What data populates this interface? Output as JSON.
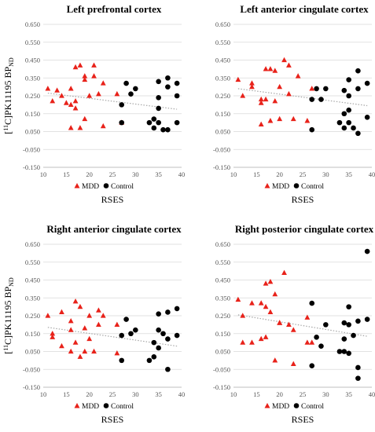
{
  "chart_data": [
    {
      "type": "scatter",
      "title": "Left prefrontal cortex",
      "xlabel": "RSES",
      "ylabel": "[11C]PK11195 BPND",
      "xlim": [
        10,
        40
      ],
      "ylim": [
        -0.15,
        0.65
      ],
      "xticks": [
        10,
        15,
        20,
        25,
        30,
        35,
        40
      ],
      "yticks": [
        -0.15,
        -0.05,
        0.05,
        0.15,
        0.25,
        0.35,
        0.45,
        0.55,
        0.65
      ],
      "series": [
        {
          "name": "MDD",
          "marker": "triangle",
          "color": "#e8221a",
          "x": [
            11,
            12,
            13,
            14,
            15,
            16,
            16,
            16,
            17,
            17,
            17,
            18,
            18,
            19,
            19,
            19,
            20,
            21,
            21,
            22,
            23,
            23,
            26,
            27
          ],
          "y": [
            0.29,
            0.22,
            0.28,
            0.25,
            0.21,
            0.29,
            0.2,
            0.07,
            0.41,
            0.22,
            0.18,
            0.42,
            0.07,
            0.36,
            0.34,
            0.12,
            0.25,
            0.42,
            0.36,
            0.26,
            0.32,
            0.08,
            0.26,
            0.1
          ]
        },
        {
          "name": "Control",
          "marker": "circle",
          "color": "#000000",
          "x": [
            27,
            27,
            28,
            29,
            30,
            33,
            34,
            34,
            35,
            35,
            35,
            35,
            36,
            37,
            37,
            37,
            39,
            39,
            39
          ],
          "y": [
            0.2,
            0.1,
            0.32,
            0.26,
            0.29,
            0.1,
            0.12,
            0.07,
            0.33,
            0.24,
            0.18,
            0.1,
            0.06,
            0.35,
            0.3,
            0.06,
            0.32,
            0.25,
            0.1
          ]
        }
      ],
      "trendline": {
        "x": [
          11,
          39
        ],
        "y": [
          0.265,
          0.175
        ]
      },
      "legend": "bottom-center"
    },
    {
      "type": "scatter",
      "title": "Left anterior cingulate cortex",
      "xlabel": "RSES",
      "ylabel": "",
      "xlim": [
        10,
        40
      ],
      "ylim": [
        -0.15,
        0.65
      ],
      "xticks": [
        10,
        15,
        20,
        25,
        30,
        35,
        40
      ],
      "yticks": [
        -0.15,
        -0.05,
        0.05,
        0.15,
        0.25,
        0.35,
        0.45,
        0.55,
        0.65
      ],
      "series": [
        {
          "name": "MDD",
          "marker": "triangle",
          "color": "#e8221a",
          "x": [
            11,
            12,
            14,
            14,
            16,
            16,
            16,
            17,
            17,
            18,
            18,
            19,
            19,
            20,
            20,
            21,
            22,
            22,
            23,
            24,
            26,
            27
          ],
          "y": [
            0.34,
            0.25,
            0.3,
            0.32,
            0.23,
            0.21,
            0.09,
            0.4,
            0.23,
            0.4,
            0.11,
            0.39,
            0.22,
            0.3,
            0.12,
            0.45,
            0.42,
            0.26,
            0.12,
            0.36,
            0.11,
            0.29
          ]
        },
        {
          "name": "Control",
          "marker": "circle",
          "color": "#000000",
          "x": [
            27,
            27,
            28,
            29,
            30,
            33,
            34,
            34,
            34,
            35,
            35,
            35,
            35,
            36,
            37,
            37,
            37,
            39,
            39
          ],
          "y": [
            0.23,
            0.06,
            0.29,
            0.23,
            0.29,
            0.1,
            0.28,
            0.15,
            0.07,
            0.34,
            0.25,
            0.17,
            0.1,
            0.07,
            0.39,
            0.29,
            0.04,
            0.32,
            0.13
          ]
        }
      ],
      "trendline": {
        "x": [
          11,
          39
        ],
        "y": [
          0.29,
          0.195
        ]
      },
      "legend": "bottom-center"
    },
    {
      "type": "scatter",
      "title": "Right anterior cingulate cortex",
      "xlabel": "RSES",
      "ylabel": "[11C]PK11195 BPND",
      "xlim": [
        10,
        40
      ],
      "ylim": [
        -0.15,
        0.65
      ],
      "xticks": [
        10,
        15,
        20,
        25,
        30,
        35,
        40
      ],
      "yticks": [
        -0.15,
        -0.05,
        0.05,
        0.15,
        0.25,
        0.35,
        0.45,
        0.55,
        0.65
      ],
      "series": [
        {
          "name": "MDD",
          "marker": "triangle",
          "color": "#e8221a",
          "x": [
            11,
            12,
            12,
            14,
            14,
            16,
            16,
            16,
            17,
            17,
            18,
            18,
            19,
            19,
            20,
            20,
            21,
            22,
            22,
            23,
            26,
            26
          ],
          "y": [
            0.25,
            0.15,
            0.13,
            0.27,
            0.08,
            0.22,
            0.17,
            0.05,
            0.33,
            0.1,
            0.3,
            0.02,
            0.18,
            0.05,
            0.25,
            0.12,
            0.05,
            0.28,
            0.2,
            0.25,
            0.2,
            0.04
          ]
        },
        {
          "name": "Control",
          "marker": "circle",
          "color": "#000000",
          "x": [
            27,
            27,
            28,
            29,
            30,
            33,
            34,
            34,
            35,
            35,
            35,
            36,
            37,
            37,
            37,
            39,
            39
          ],
          "y": [
            0.14,
            0.0,
            0.23,
            0.15,
            0.17,
            0.0,
            0.1,
            0.02,
            0.26,
            0.17,
            0.07,
            0.15,
            0.27,
            0.12,
            -0.05,
            0.29,
            0.14
          ]
        }
      ],
      "trendline": {
        "x": [
          11,
          39
        ],
        "y": [
          0.185,
          0.08
        ]
      },
      "legend": "bottom-center"
    },
    {
      "type": "scatter",
      "title": "Right posterior cingulate cortex",
      "xlabel": "RSES",
      "ylabel": "",
      "xlim": [
        10,
        40
      ],
      "ylim": [
        -0.15,
        0.65
      ],
      "xticks": [
        10,
        15,
        20,
        25,
        30,
        35,
        40
      ],
      "yticks": [
        -0.15,
        -0.05,
        0.05,
        0.15,
        0.25,
        0.35,
        0.45,
        0.55,
        0.65
      ],
      "series": [
        {
          "name": "MDD",
          "marker": "triangle",
          "color": "#e8221a",
          "x": [
            11,
            12,
            12,
            14,
            14,
            16,
            16,
            17,
            17,
            17,
            18,
            18,
            19,
            19,
            20,
            20,
            21,
            22,
            23,
            23,
            26,
            26,
            27
          ],
          "y": [
            0.34,
            0.25,
            0.1,
            0.32,
            0.1,
            0.32,
            0.12,
            0.43,
            0.3,
            0.13,
            0.44,
            0.27,
            0.37,
            0.0,
            0.21,
            0.21,
            0.49,
            0.2,
            0.17,
            -0.02,
            0.24,
            0.1,
            0.1
          ]
        },
        {
          "name": "Control",
          "marker": "circle",
          "color": "#000000",
          "x": [
            27,
            27,
            28,
            29,
            30,
            33,
            34,
            34,
            34,
            35,
            35,
            35,
            36,
            37,
            37,
            37,
            39,
            39
          ],
          "y": [
            0.32,
            -0.03,
            0.13,
            0.08,
            0.2,
            0.05,
            0.21,
            0.12,
            0.05,
            0.3,
            0.2,
            0.04,
            0.14,
            0.22,
            -0.04,
            -0.1,
            0.61,
            0.23
          ]
        }
      ],
      "trendline": {
        "x": [
          11,
          39
        ],
        "y": [
          0.255,
          0.135
        ]
      },
      "legend": "bottom-center"
    }
  ],
  "legend_labels": {
    "mdd": "MDD",
    "control": "Control"
  },
  "ylabel_parts": {
    "pre": "[",
    "sup": "11",
    "mid": "C]PK11195 BP",
    "sub": "ND"
  },
  "colors": {
    "mdd": "#e8221a",
    "control": "#000000",
    "grid": "#d9d9d9",
    "axis": "#bfbfbf",
    "trend": "#a6a6a6"
  }
}
